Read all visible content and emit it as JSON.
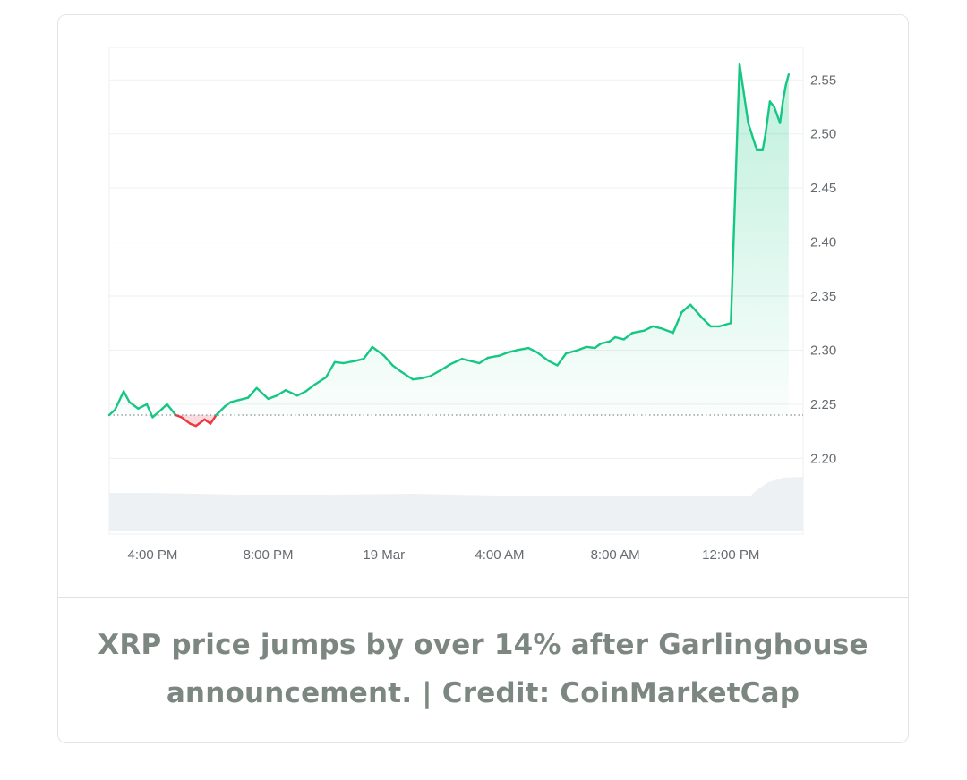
{
  "caption": "XRP price jumps by over 14% after Garlinghouse announcement. | Credit: CoinMarketCap",
  "colors": {
    "up": "#16c784",
    "down": "#ea3943",
    "volume": "#eef1f3",
    "grid": "#eef0f2",
    "baseline_dots": "#8a8f94"
  },
  "chart_data": {
    "type": "area",
    "ylim": [
      2.13,
      2.58
    ],
    "y_ticks": [
      "2.20",
      "2.25",
      "2.30",
      "2.35",
      "2.40",
      "2.45",
      "2.50",
      "2.55"
    ],
    "x_range_hours": [
      14.5,
      38.5
    ],
    "x_ticks": [
      {
        "label": "4:00 PM",
        "h": 16
      },
      {
        "label": "8:00 PM",
        "h": 20
      },
      {
        "label": "19 Mar",
        "h": 24
      },
      {
        "label": "4:00 AM",
        "h": 28
      },
      {
        "label": "8:00 AM",
        "h": 32
      },
      {
        "label": "12:00 PM",
        "h": 36
      }
    ],
    "baseline": 2.24,
    "grid": true,
    "series": [
      {
        "x_hours": [
          14.5,
          14.7,
          15.0,
          15.2,
          15.5,
          15.8,
          16.0,
          16.3,
          16.5,
          16.8,
          17.0,
          17.3,
          17.5,
          17.8,
          18.0,
          18.2,
          18.5,
          18.7,
          19.0,
          19.3,
          19.6,
          20.0,
          20.3,
          20.6,
          21.0,
          21.3,
          21.6,
          22.0,
          22.3,
          22.6,
          23.0,
          23.3,
          23.6,
          24.0,
          24.3,
          24.6,
          25.0,
          25.3,
          25.6,
          26.0,
          26.3,
          26.7,
          27.0,
          27.3,
          27.6,
          28.0,
          28.3,
          28.6,
          29.0,
          29.3,
          29.7,
          30.0,
          30.3,
          30.7,
          31.0,
          31.3,
          31.5,
          31.8,
          32.0,
          32.3,
          32.6,
          33.0,
          33.3,
          33.6,
          34.0,
          34.3,
          34.6,
          35.0,
          35.3,
          35.6,
          36.0,
          36.3,
          36.6,
          36.9,
          37.1,
          37.2,
          37.35,
          37.5,
          37.7,
          37.8,
          37.9,
          38.0
        ],
        "values": [
          2.24,
          2.245,
          2.262,
          2.252,
          2.246,
          2.25,
          2.238,
          2.245,
          2.25,
          2.24,
          2.238,
          2.232,
          2.23,
          2.236,
          2.232,
          2.24,
          2.248,
          2.252,
          2.254,
          2.256,
          2.265,
          2.255,
          2.258,
          2.263,
          2.258,
          2.262,
          2.268,
          2.275,
          2.289,
          2.288,
          2.29,
          2.292,
          2.303,
          2.295,
          2.286,
          2.28,
          2.273,
          2.274,
          2.276,
          2.282,
          2.287,
          2.292,
          2.29,
          2.288,
          2.293,
          2.295,
          2.298,
          2.3,
          2.302,
          2.298,
          2.29,
          2.286,
          2.297,
          2.3,
          2.303,
          2.302,
          2.306,
          2.308,
          2.312,
          2.31,
          2.316,
          2.318,
          2.322,
          2.32,
          2.316,
          2.335,
          2.342,
          2.33,
          2.322,
          2.322,
          2.325,
          2.565,
          2.51,
          2.485,
          2.485,
          2.5,
          2.53,
          2.525,
          2.51,
          2.53,
          2.545,
          2.555
        ]
      }
    ],
    "volume_note": ""
  }
}
